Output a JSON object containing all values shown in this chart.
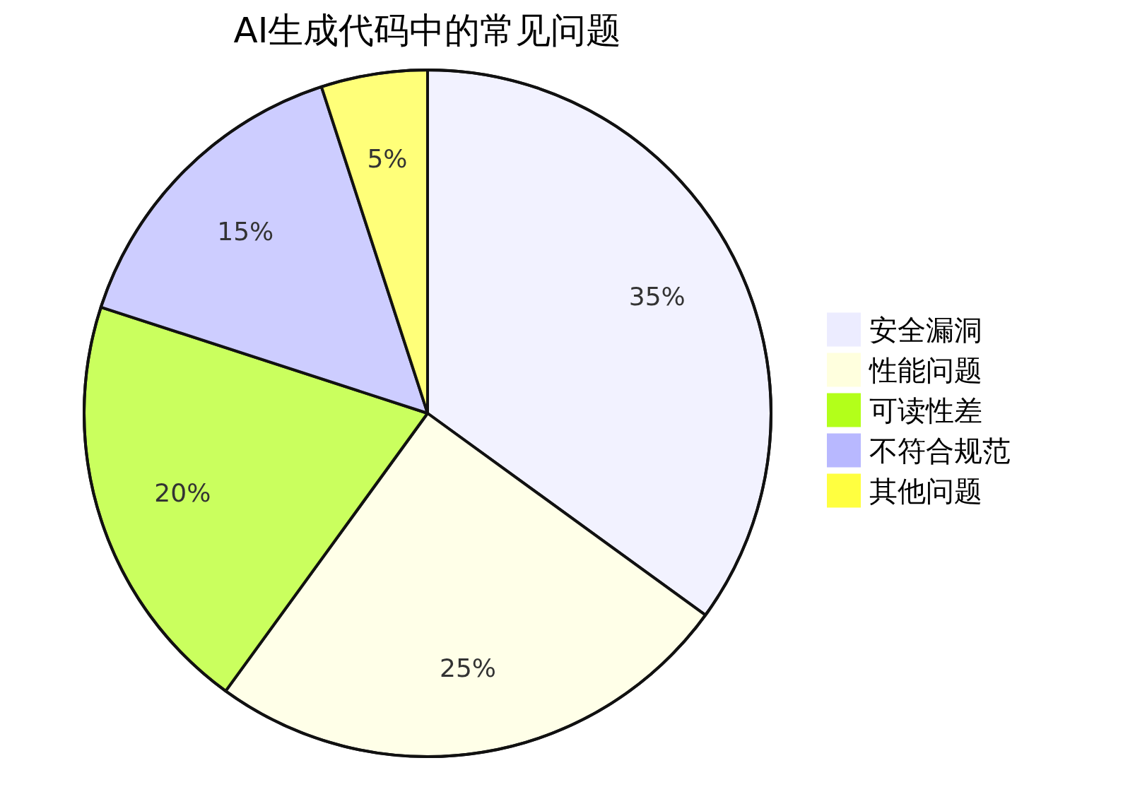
{
  "chart_data": {
    "type": "pie",
    "title": "AI生成代码中的常见问题",
    "categories": [
      "安全漏洞",
      "性能问题",
      "可读性差",
      "不符合规范",
      "其他问题"
    ],
    "values": [
      35,
      25,
      20,
      15,
      5
    ],
    "colors": [
      "#ececff",
      "#ffffde",
      "#b3ff1a",
      "#b8b8ff",
      "#ffff40"
    ],
    "value_labels": [
      "35%",
      "25%",
      "20%",
      "15%",
      "5%"
    ],
    "legend": "right"
  }
}
